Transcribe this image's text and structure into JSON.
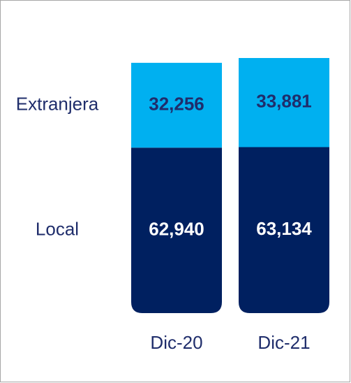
{
  "chart_data": {
    "type": "stacked_bar",
    "categories": [
      "Dic-20",
      "Dic-21"
    ],
    "series": [
      {
        "name": "Local",
        "color": "#002060",
        "values": [
          62940,
          63134
        ],
        "value_labels": [
          "62,940",
          "63,134"
        ]
      },
      {
        "name": "Extranjera",
        "color": "#00b0f0",
        "values": [
          32256,
          33881
        ],
        "value_labels": [
          "32,256",
          "33,881"
        ]
      }
    ]
  }
}
